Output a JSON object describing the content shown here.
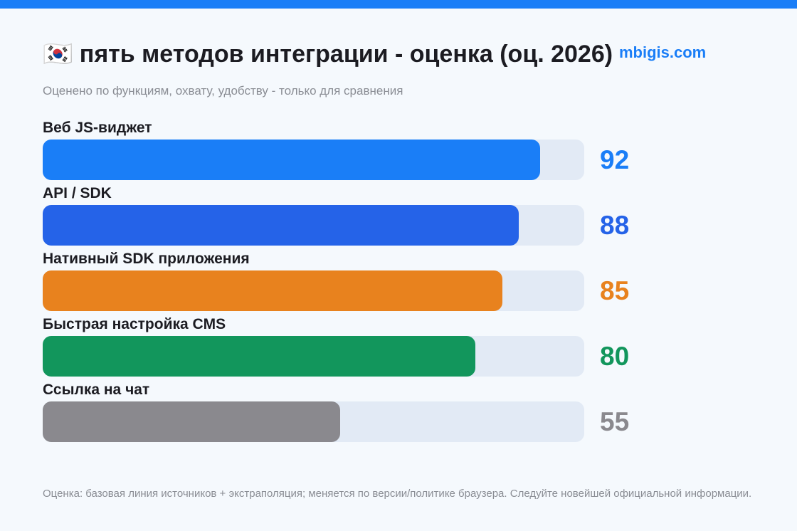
{
  "header": {
    "title": "🇰🇷 пять методов интеграции - оценка (оц. 2026)",
    "brand": "mbigis.com",
    "subtitle": "Оценено по функциям, охвату, удобству - только для сравнения"
  },
  "footer": {
    "note": "Оценка: базовая линия источников + экстраполяция; меняется по версии/политике браузера. Следуйте новейшей официальной информации."
  },
  "colors": {
    "accent": "#1a7ef7",
    "track": "#e2eaf5"
  },
  "chart_data": {
    "type": "bar",
    "orientation": "horizontal",
    "categories": [
      "Веб JS-виджет",
      "API / SDK",
      "Нативный SDK приложения",
      "Быстрая настройка CMS",
      "Ссылка на чат"
    ],
    "values": [
      92,
      88,
      85,
      80,
      55
    ],
    "colors": [
      "#1a7ef7",
      "#2563e8",
      "#e8821e",
      "#12965c",
      "#8a898e"
    ],
    "xlim": [
      0,
      100
    ],
    "grid": false,
    "legend": "none"
  }
}
